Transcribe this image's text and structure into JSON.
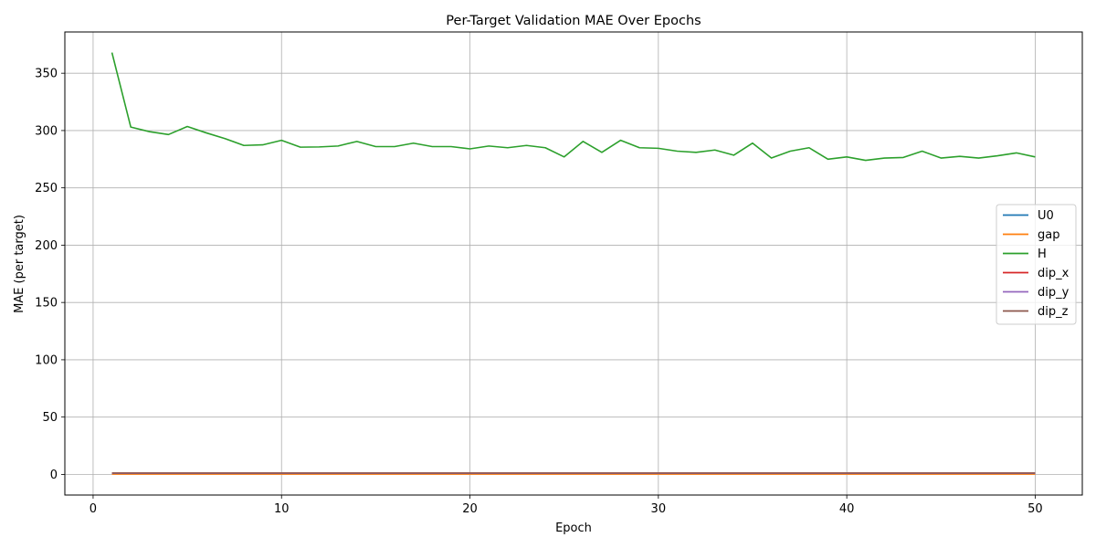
{
  "chart_data": {
    "type": "line",
    "title": "Per-Target Validation MAE Over Epochs",
    "xlabel": "Epoch",
    "ylabel": "MAE (per target)",
    "xlim": [
      -1.5,
      52.5
    ],
    "ylim": [
      -18,
      386
    ],
    "xticks": [
      0,
      10,
      20,
      30,
      40,
      50
    ],
    "yticks": [
      0,
      50,
      100,
      150,
      200,
      250,
      300,
      350
    ],
    "grid": true,
    "legend_position": "center-right",
    "x": [
      1,
      2,
      3,
      4,
      5,
      6,
      7,
      8,
      9,
      10,
      11,
      12,
      13,
      14,
      15,
      16,
      17,
      18,
      19,
      20,
      21,
      22,
      23,
      24,
      25,
      26,
      27,
      28,
      29,
      30,
      31,
      32,
      33,
      34,
      35,
      36,
      37,
      38,
      39,
      40,
      41,
      42,
      43,
      44,
      45,
      46,
      47,
      48,
      49,
      50
    ],
    "series": [
      {
        "name": "U0",
        "color": "#1f77b4",
        "values": [
          0.6,
          0.6,
          0.6,
          0.6,
          0.6,
          0.6,
          0.6,
          0.6,
          0.6,
          0.6,
          0.6,
          0.6,
          0.6,
          0.6,
          0.6,
          0.6,
          0.6,
          0.6,
          0.6,
          0.6,
          0.6,
          0.6,
          0.6,
          0.6,
          0.6,
          0.6,
          0.6,
          0.6,
          0.6,
          0.6,
          0.6,
          0.6,
          0.6,
          0.6,
          0.6,
          0.6,
          0.6,
          0.6,
          0.6,
          0.6,
          0.6,
          0.6,
          0.6,
          0.6,
          0.6,
          0.6,
          0.6,
          0.6,
          0.6,
          0.6
        ]
      },
      {
        "name": "gap",
        "color": "#ff7f0e",
        "values": [
          0.3,
          0.3,
          0.3,
          0.3,
          0.3,
          0.3,
          0.3,
          0.3,
          0.3,
          0.3,
          0.3,
          0.3,
          0.3,
          0.3,
          0.3,
          0.3,
          0.3,
          0.3,
          0.3,
          0.3,
          0.3,
          0.3,
          0.3,
          0.3,
          0.3,
          0.3,
          0.3,
          0.3,
          0.3,
          0.3,
          0.3,
          0.3,
          0.3,
          0.3,
          0.3,
          0.3,
          0.3,
          0.3,
          0.3,
          0.3,
          0.3,
          0.3,
          0.3,
          0.3,
          0.3,
          0.3,
          0.3,
          0.3,
          0.3,
          0.3
        ]
      },
      {
        "name": "H",
        "color": "#2ca02c",
        "values": [
          368,
          303,
          299,
          296.5,
          303.5,
          298,
          293,
          287,
          287.5,
          291.5,
          285.5,
          285.7,
          286.5,
          290.5,
          286,
          286,
          289,
          286,
          286,
          284,
          286.5,
          285,
          287,
          285,
          277,
          290.5,
          281,
          291.5,
          285,
          284.5,
          282,
          281,
          283,
          278.5,
          289,
          276,
          282,
          285,
          275,
          277,
          274,
          276,
          276.5,
          282,
          276,
          277.5,
          276,
          278,
          280.5,
          277
        ]
      },
      {
        "name": "dip_x",
        "color": "#d62728",
        "values": [
          1.0,
          1.0,
          1.0,
          1.0,
          1.0,
          1.0,
          1.0,
          1.0,
          1.0,
          1.0,
          1.0,
          1.0,
          1.0,
          1.0,
          1.0,
          1.0,
          1.0,
          1.0,
          1.0,
          1.0,
          1.0,
          1.0,
          1.0,
          1.0,
          1.0,
          1.0,
          1.0,
          1.0,
          1.0,
          1.0,
          1.0,
          1.0,
          1.0,
          1.0,
          1.0,
          1.0,
          1.0,
          1.0,
          1.0,
          1.0,
          1.0,
          1.0,
          1.0,
          1.0,
          1.0,
          1.0,
          1.0,
          1.0,
          1.0,
          1.0
        ]
      },
      {
        "name": "dip_y",
        "color": "#9467bd",
        "values": [
          1.0,
          1.0,
          1.0,
          1.0,
          1.0,
          1.0,
          1.0,
          1.0,
          1.0,
          1.0,
          1.0,
          1.0,
          1.0,
          1.0,
          1.0,
          1.0,
          1.0,
          1.0,
          1.0,
          1.0,
          1.0,
          1.0,
          1.0,
          1.0,
          1.0,
          1.0,
          1.0,
          1.0,
          1.0,
          1.0,
          1.0,
          1.0,
          1.0,
          1.0,
          1.0,
          1.0,
          1.0,
          1.0,
          1.0,
          1.0,
          1.0,
          1.0,
          1.0,
          1.0,
          1.0,
          1.0,
          1.0,
          1.0,
          1.0,
          1.0
        ]
      },
      {
        "name": "dip_z",
        "color": "#8c564b",
        "values": [
          1.2,
          1.2,
          1.2,
          1.2,
          1.2,
          1.2,
          1.2,
          1.2,
          1.2,
          1.2,
          1.2,
          1.2,
          1.2,
          1.2,
          1.2,
          1.2,
          1.2,
          1.2,
          1.2,
          1.2,
          1.2,
          1.2,
          1.2,
          1.2,
          1.2,
          1.2,
          1.2,
          1.2,
          1.2,
          1.2,
          1.2,
          1.2,
          1.2,
          1.2,
          1.2,
          1.2,
          1.2,
          1.2,
          1.2,
          1.2,
          1.2,
          1.2,
          1.2,
          1.2,
          1.2,
          1.2,
          1.2,
          1.2,
          1.2,
          1.2
        ]
      }
    ]
  }
}
